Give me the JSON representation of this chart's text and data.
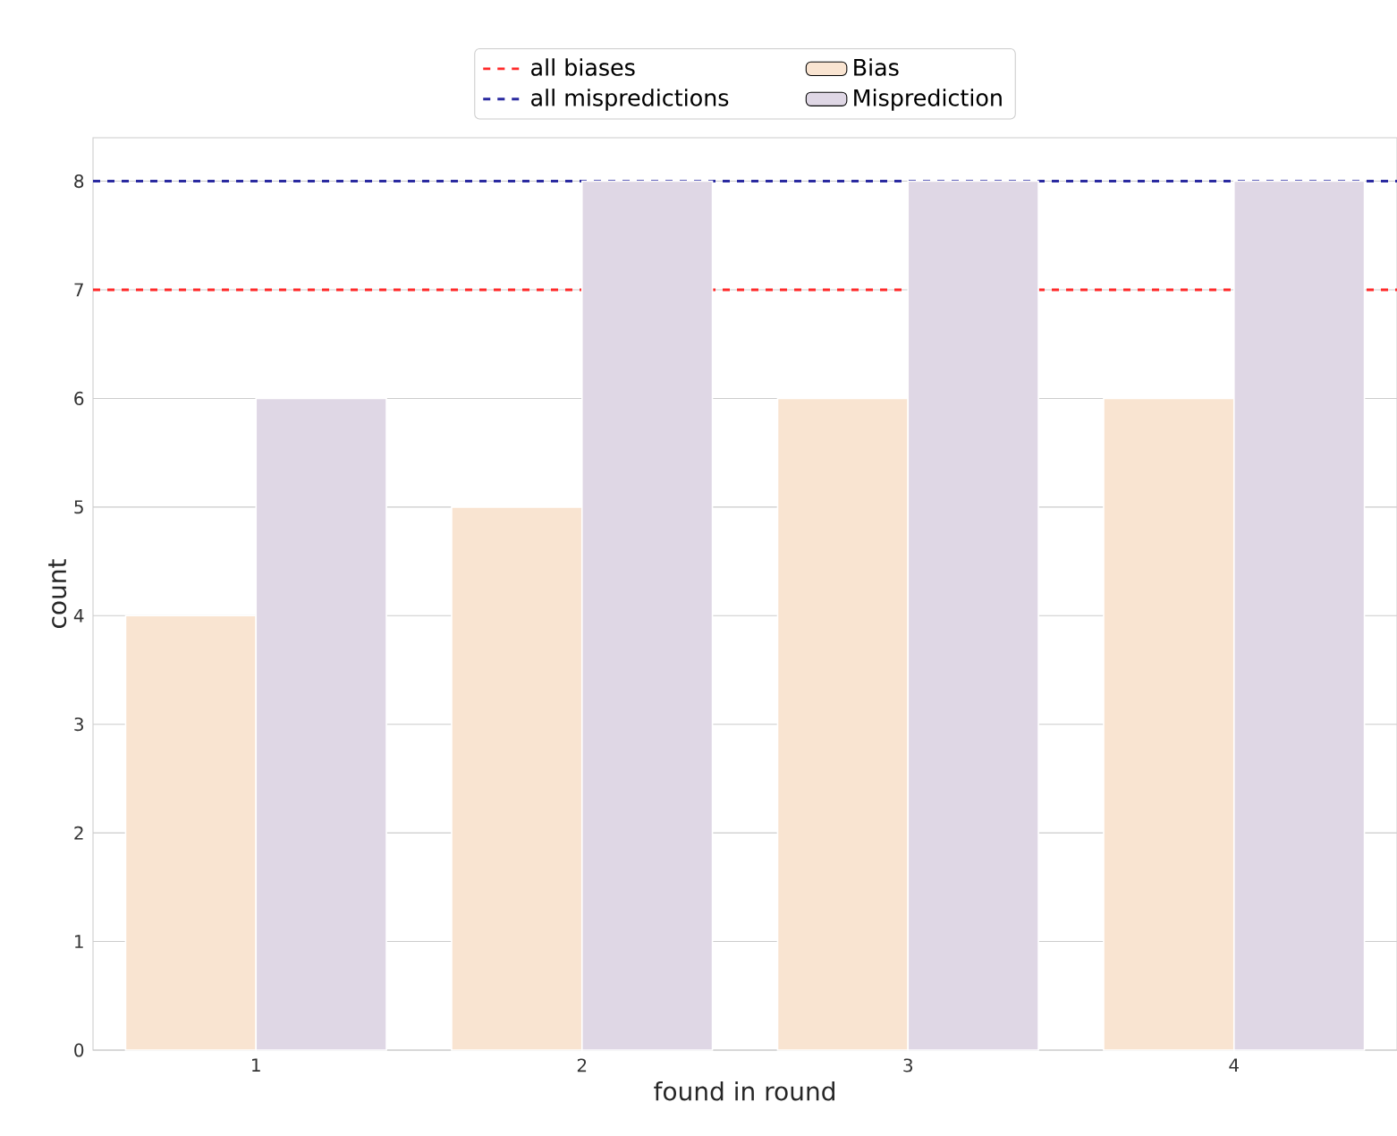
{
  "chart_data": {
    "type": "bar",
    "xlabel": "found in round",
    "ylabel": "count",
    "categories": [
      "1",
      "2",
      "3",
      "4"
    ],
    "series": [
      {
        "name": "Bias",
        "color": "#f9e4d1",
        "values": [
          4,
          5,
          6,
          6
        ]
      },
      {
        "name": "Misprediction",
        "color": "#dfd7e5",
        "values": [
          6,
          8,
          8,
          8
        ]
      }
    ],
    "ylim": [
      0,
      8.4
    ],
    "yticks": [
      0,
      1,
      2,
      3,
      4,
      5,
      6,
      7,
      8
    ],
    "ref_lines": [
      {
        "axis": "y",
        "value": 7,
        "label": "all biases",
        "color": "#ff2a2a",
        "line_style": "dashed"
      },
      {
        "axis": "y",
        "value": 8,
        "label": "all mispredictions",
        "color": "#2a2aa0",
        "line_style": "dashed"
      }
    ],
    "grid": "y",
    "legend": "top"
  }
}
